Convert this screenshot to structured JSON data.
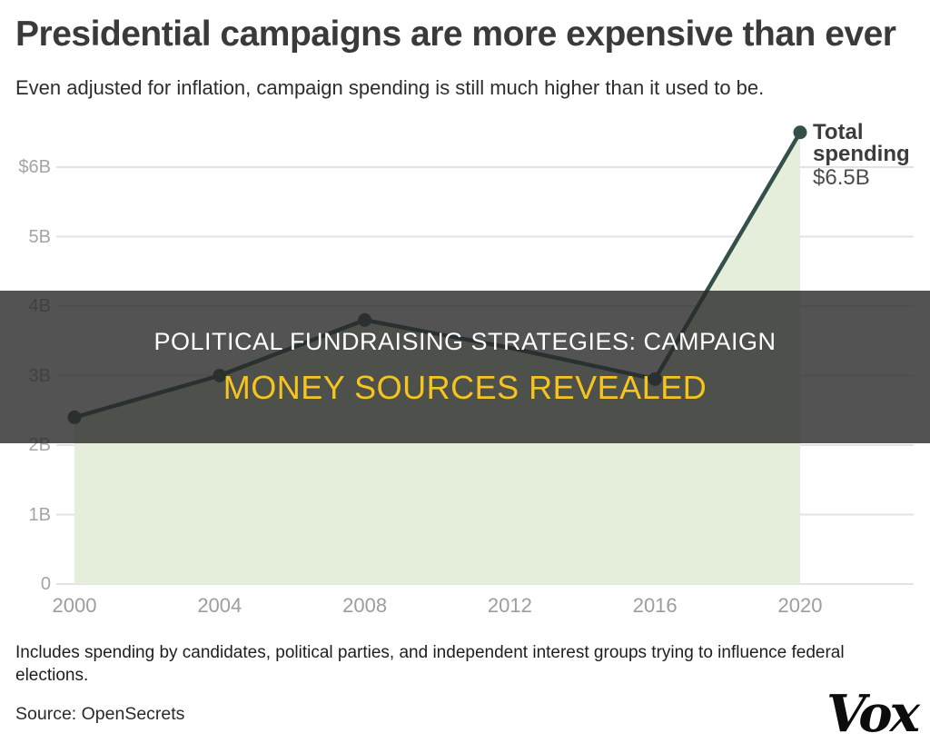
{
  "header": {
    "title": "Presidential campaigns are more expensive than ever",
    "subtitle": "Even adjusted for inflation, campaign spending is still much higher than it used to be."
  },
  "overlay_banner": {
    "line1": "POLITICAL FUNDRAISING STRATEGIES: CAMPAIGN",
    "line2": "MONEY SOURCES REVEALED",
    "line1_color": "#ffffff",
    "line2_color": "#f6c41f",
    "background": "rgba(40,40,40,0.8)"
  },
  "chart_data": {
    "type": "area",
    "title": "Presidential campaigns are more expensive than ever",
    "x": [
      2000,
      2004,
      2008,
      2012,
      2016,
      2020
    ],
    "series": [
      {
        "name": "Total spending",
        "values": [
          2.4,
          3.0,
          3.8,
          3.4,
          2.95,
          6.5
        ],
        "markers": [
          true,
          true,
          true,
          false,
          true,
          true
        ]
      }
    ],
    "unit": "$ billions",
    "yticks": [
      {
        "value": 6,
        "label": "$6B"
      },
      {
        "value": 5,
        "label": "5B"
      },
      {
        "value": 4,
        "label": "4B"
      },
      {
        "value": 3,
        "label": "3B"
      },
      {
        "value": 2,
        "label": "2B"
      },
      {
        "value": 1,
        "label": "1B"
      },
      {
        "value": 0,
        "label": "0"
      }
    ],
    "ylim": [
      0,
      6.7
    ],
    "grid": true,
    "legend_position": "annotation-at-last-point",
    "annotation": {
      "title": "Total spending",
      "value": "$6.5B"
    },
    "colors": {
      "line": "#34504b",
      "area": "#e5eedb",
      "grid": "#e3e3e3",
      "axis_text": "#a4a4a4"
    }
  },
  "footer": {
    "footnote": "Includes spending by candidates, political parties, and independent interest groups trying to influence federal elections.",
    "source": "Source: OpenSecrets",
    "logo": "Vox"
  }
}
